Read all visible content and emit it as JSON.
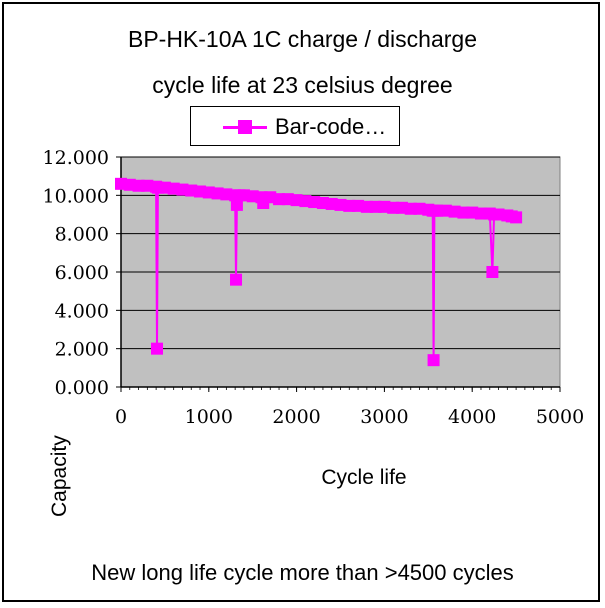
{
  "chart_data": {
    "type": "line",
    "title": "BP-HK-10A 1C charge / discharge",
    "subtitle": "cycle life at 23 celsius  degree",
    "xlabel": "Cycle life",
    "ylabel": "Capacity",
    "xlim": [
      0,
      5000
    ],
    "ylim": [
      0,
      12
    ],
    "x_ticks": [
      "0",
      "1000",
      "2000",
      "3000",
      "4000",
      "5000"
    ],
    "x_tick_values": [
      0,
      1000,
      2000,
      3000,
      4000,
      5000
    ],
    "y_ticks": [
      "0.000",
      "2.000",
      "4.000",
      "6.000",
      "8.000",
      "10.000",
      "12.000"
    ],
    "y_tick_values": [
      0,
      2,
      4,
      6,
      8,
      10,
      12
    ],
    "grid": "horizontal",
    "plot_background": "#c0c0c0",
    "legend_position": "top",
    "series": [
      {
        "name": "Bar-code…",
        "color": "#ff00ff",
        "marker": "square",
        "points": [
          [
            0,
            10.6
          ],
          [
            100,
            10.55
          ],
          [
            200,
            10.5
          ],
          [
            300,
            10.5
          ],
          [
            400,
            10.45
          ],
          [
            410,
            2.0
          ],
          [
            420,
            10.4
          ],
          [
            500,
            10.4
          ],
          [
            600,
            10.35
          ],
          [
            700,
            10.3
          ],
          [
            800,
            10.25
          ],
          [
            900,
            10.2
          ],
          [
            1000,
            10.15
          ],
          [
            1100,
            10.1
          ],
          [
            1200,
            10.05
          ],
          [
            1300,
            10.0
          ],
          [
            1310,
            5.6
          ],
          [
            1320,
            9.5
          ],
          [
            1350,
            10.0
          ],
          [
            1400,
            10.0
          ],
          [
            1500,
            9.95
          ],
          [
            1600,
            9.9
          ],
          [
            1620,
            9.6
          ],
          [
            1700,
            9.9
          ],
          [
            1800,
            9.8
          ],
          [
            1900,
            9.8
          ],
          [
            2000,
            9.75
          ],
          [
            2100,
            9.7
          ],
          [
            2200,
            9.65
          ],
          [
            2300,
            9.6
          ],
          [
            2400,
            9.55
          ],
          [
            2500,
            9.5
          ],
          [
            2600,
            9.45
          ],
          [
            2700,
            9.45
          ],
          [
            2800,
            9.4
          ],
          [
            2900,
            9.4
          ],
          [
            3000,
            9.4
          ],
          [
            3100,
            9.35
          ],
          [
            3200,
            9.35
          ],
          [
            3300,
            9.3
          ],
          [
            3400,
            9.3
          ],
          [
            3500,
            9.25
          ],
          [
            3550,
            9.2
          ],
          [
            3560,
            1.4
          ],
          [
            3570,
            9.2
          ],
          [
            3600,
            9.2
          ],
          [
            3700,
            9.2
          ],
          [
            3800,
            9.15
          ],
          [
            3900,
            9.1
          ],
          [
            4000,
            9.1
          ],
          [
            4100,
            9.05
          ],
          [
            4200,
            9.05
          ],
          [
            4230,
            6.0
          ],
          [
            4250,
            9.0
          ],
          [
            4300,
            9.0
          ],
          [
            4400,
            8.95
          ],
          [
            4450,
            8.9
          ],
          [
            4500,
            8.85
          ]
        ]
      }
    ]
  },
  "footer": "New long life cycle more than >4500 cycles"
}
